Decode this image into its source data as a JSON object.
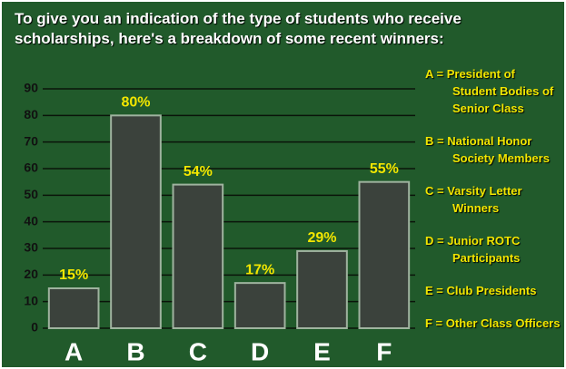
{
  "chart_data": {
    "type": "bar",
    "title": "To give you an indication of the type of students who receive scholarships, here's a breakdown of some recent winners:",
    "categories": [
      "A",
      "B",
      "C",
      "D",
      "E",
      "F"
    ],
    "values": [
      15,
      80,
      54,
      17,
      29,
      55
    ],
    "value_labels": [
      "15%",
      "80%",
      "54%",
      "17%",
      "29%",
      "55%"
    ],
    "color": "#3b423c",
    "ylim": [
      0,
      90
    ],
    "yticks": [
      0,
      10,
      20,
      30,
      40,
      50,
      60,
      70,
      80,
      90
    ],
    "grid": true,
    "legend": [
      "A = President of Student Bodies of Senior Class",
      "B = National Honor Society Members",
      "C = Varsity Letter Winners",
      "D = Junior ROTC Participants",
      "E = Club Presidents",
      "F = Other Class Officers"
    ]
  }
}
